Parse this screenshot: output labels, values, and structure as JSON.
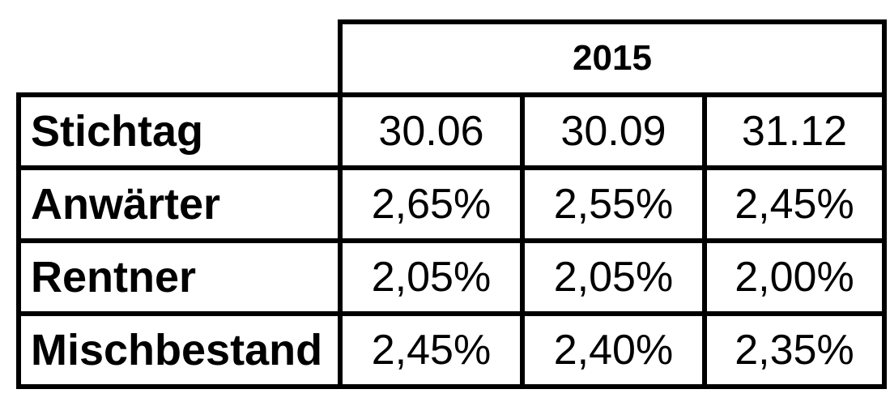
{
  "chart_data": {
    "type": "table",
    "header": {
      "year": "2015"
    },
    "columns": [
      "30.06",
      "30.09",
      "31.12"
    ],
    "stichtag_label": "Stichtag",
    "rows": [
      {
        "label": "Anwärter",
        "values": [
          "2,65%",
          "2,55%",
          "2,45%"
        ]
      },
      {
        "label": "Rentner",
        "values": [
          "2,05%",
          "2,05%",
          "2,00%"
        ]
      },
      {
        "label": "Mischbestand",
        "values": [
          "2,45%",
          "2,40%",
          "2,35%"
        ]
      }
    ]
  }
}
